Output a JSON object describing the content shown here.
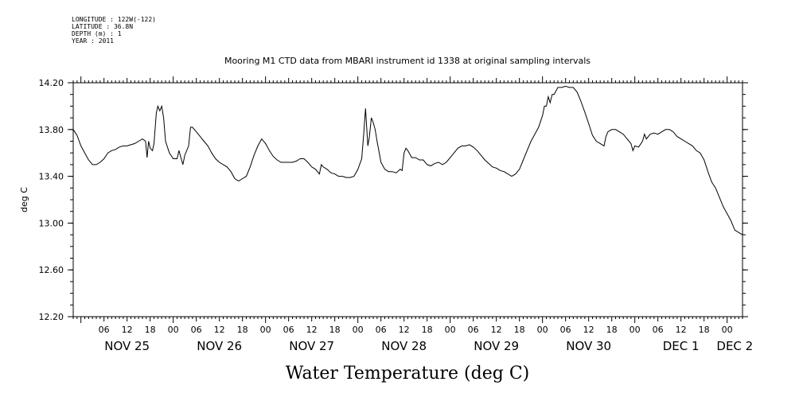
{
  "header": {
    "longitude": "LONGITUDE : 122W(-122)",
    "latitude": "LATITUDE : 36.8N",
    "depth": "DEPTH (m) : 1",
    "year": "YEAR : 2011"
  },
  "chart_data": {
    "type": "line",
    "title": "Mooring M1 CTD data from MBARI instrument id 1338 at original sampling intervals",
    "xlabel": "Water Temperature (deg C)",
    "ylabel": "deg C",
    "ylim": [
      12.2,
      14.2
    ],
    "xlim_hours": [
      0,
      174
    ],
    "x_unit": "hours since NOV 24 22:00",
    "y_ticks": [
      "14.20",
      "13.80",
      "13.40",
      "13.00",
      "12.60",
      "12.20"
    ],
    "x_hour_ticks": [
      "06",
      "12",
      "18",
      "00",
      "06",
      "12",
      "18",
      "00",
      "06",
      "12",
      "18",
      "00",
      "06",
      "12",
      "18",
      "00",
      "06",
      "12",
      "18",
      "00",
      "06",
      "12",
      "18",
      "00",
      "06",
      "12",
      "18",
      "00"
    ],
    "day_labels": [
      "NOV 25",
      "NOV 26",
      "NOV 27",
      "NOV 28",
      "NOV 29",
      "NOV 30",
      "DEC  1",
      "DEC  2"
    ],
    "series": [
      {
        "values": [
          [
            0,
            13.8
          ],
          [
            1,
            13.75
          ],
          [
            2,
            13.66
          ],
          [
            3,
            13.6
          ],
          [
            4,
            13.54
          ],
          [
            5,
            13.5
          ],
          [
            6,
            13.5
          ],
          [
            7,
            13.52
          ],
          [
            8,
            13.55
          ],
          [
            9,
            13.6
          ],
          [
            10,
            13.62
          ],
          [
            11,
            13.63
          ],
          [
            12,
            13.65
          ],
          [
            13,
            13.66
          ],
          [
            14,
            13.66
          ],
          [
            15,
            13.67
          ],
          [
            16,
            13.68
          ],
          [
            17,
            13.7
          ],
          [
            18,
            13.72
          ],
          [
            18.8,
            13.7
          ],
          [
            19.2,
            13.56
          ],
          [
            19.6,
            13.7
          ],
          [
            20,
            13.64
          ],
          [
            20.6,
            13.62
          ],
          [
            21,
            13.68
          ],
          [
            21.6,
            13.94
          ],
          [
            22,
            14.0
          ],
          [
            22.5,
            13.96
          ],
          [
            23,
            14.0
          ],
          [
            23.5,
            13.9
          ],
          [
            24,
            13.7
          ],
          [
            25,
            13.6
          ],
          [
            26,
            13.55
          ],
          [
            27,
            13.55
          ],
          [
            27.5,
            13.62
          ],
          [
            28,
            13.56
          ],
          [
            28.5,
            13.5
          ],
          [
            29,
            13.58
          ],
          [
            30,
            13.66
          ],
          [
            30.5,
            13.82
          ],
          [
            31,
            13.82
          ],
          [
            32,
            13.78
          ],
          [
            33,
            13.74
          ],
          [
            34,
            13.7
          ],
          [
            35,
            13.66
          ],
          [
            36,
            13.6
          ],
          [
            37,
            13.55
          ],
          [
            38,
            13.52
          ],
          [
            39,
            13.5
          ],
          [
            40,
            13.48
          ],
          [
            41,
            13.44
          ],
          [
            42,
            13.38
          ],
          [
            43,
            13.36
          ],
          [
            44,
            13.38
          ],
          [
            45,
            13.4
          ],
          [
            46,
            13.48
          ],
          [
            47,
            13.58
          ],
          [
            48,
            13.66
          ],
          [
            49,
            13.72
          ],
          [
            50,
            13.68
          ],
          [
            51,
            13.62
          ],
          [
            52,
            13.57
          ],
          [
            53,
            13.54
          ],
          [
            54,
            13.52
          ],
          [
            55,
            13.52
          ],
          [
            56,
            13.52
          ],
          [
            57,
            13.52
          ],
          [
            58,
            13.53
          ],
          [
            59,
            13.55
          ],
          [
            60,
            13.55
          ],
          [
            61,
            13.52
          ],
          [
            62,
            13.48
          ],
          [
            63,
            13.46
          ],
          [
            64,
            13.42
          ],
          [
            64.5,
            13.5
          ],
          [
            65,
            13.48
          ],
          [
            66,
            13.46
          ],
          [
            67,
            13.43
          ],
          [
            68,
            13.42
          ],
          [
            69,
            13.4
          ],
          [
            70,
            13.4
          ],
          [
            71,
            13.39
          ],
          [
            72,
            13.39
          ],
          [
            73,
            13.4
          ],
          [
            74,
            13.46
          ],
          [
            75,
            13.55
          ],
          [
            75.5,
            13.75
          ],
          [
            76,
            13.98
          ],
          [
            76.6,
            13.66
          ],
          [
            77,
            13.74
          ],
          [
            77.5,
            13.9
          ],
          [
            78,
            13.86
          ],
          [
            78.5,
            13.8
          ],
          [
            79,
            13.7
          ],
          [
            80,
            13.52
          ],
          [
            81,
            13.46
          ],
          [
            82,
            13.44
          ],
          [
            83,
            13.44
          ],
          [
            84,
            13.43
          ],
          [
            85,
            13.46
          ],
          [
            85.5,
            13.45
          ],
          [
            86,
            13.6
          ],
          [
            86.5,
            13.64
          ],
          [
            87,
            13.62
          ],
          [
            88,
            13.56
          ],
          [
            89,
            13.56
          ],
          [
            90,
            13.54
          ],
          [
            91,
            13.54
          ],
          [
            92,
            13.5
          ],
          [
            93,
            13.49
          ],
          [
            94,
            13.51
          ],
          [
            95,
            13.52
          ],
          [
            96,
            13.5
          ],
          [
            97,
            13.52
          ],
          [
            98,
            13.56
          ],
          [
            99,
            13.6
          ],
          [
            100,
            13.64
          ],
          [
            101,
            13.66
          ],
          [
            102,
            13.66
          ],
          [
            103,
            13.67
          ],
          [
            104,
            13.65
          ],
          [
            105,
            13.62
          ],
          [
            106,
            13.58
          ],
          [
            107,
            13.54
          ],
          [
            108,
            13.51
          ],
          [
            109,
            13.48
          ],
          [
            110,
            13.47
          ],
          [
            111,
            13.45
          ],
          [
            112,
            13.44
          ],
          [
            113,
            13.42
          ],
          [
            114,
            13.4
          ],
          [
            115,
            13.42
          ],
          [
            116,
            13.46
          ],
          [
            117,
            13.54
          ],
          [
            118,
            13.62
          ],
          [
            119,
            13.7
          ],
          [
            120,
            13.76
          ],
          [
            121,
            13.82
          ],
          [
            122,
            13.92
          ],
          [
            122.5,
            14.0
          ],
          [
            123,
            14.0
          ],
          [
            123.5,
            14.08
          ],
          [
            124,
            14.03
          ],
          [
            124.5,
            14.1
          ],
          [
            125,
            14.1
          ],
          [
            126,
            14.16
          ],
          [
            127,
            14.16
          ],
          [
            128,
            14.17
          ],
          [
            129,
            14.16
          ],
          [
            130,
            14.16
          ],
          [
            131,
            14.12
          ],
          [
            132,
            14.04
          ],
          [
            133,
            13.95
          ],
          [
            134,
            13.85
          ],
          [
            135,
            13.75
          ],
          [
            136,
            13.7
          ],
          [
            137,
            13.68
          ],
          [
            138,
            13.66
          ],
          [
            138.5,
            13.74
          ],
          [
            139,
            13.78
          ],
          [
            140,
            13.8
          ],
          [
            141,
            13.8
          ],
          [
            142,
            13.78
          ],
          [
            143,
            13.76
          ],
          [
            144,
            13.72
          ],
          [
            145,
            13.68
          ],
          [
            145.5,
            13.62
          ],
          [
            146,
            13.66
          ],
          [
            147,
            13.65
          ],
          [
            148,
            13.7
          ],
          [
            148.5,
            13.76
          ],
          [
            149,
            13.72
          ],
          [
            150,
            13.76
          ],
          [
            151,
            13.77
          ],
          [
            152,
            13.76
          ],
          [
            153,
            13.78
          ],
          [
            154,
            13.8
          ],
          [
            155,
            13.8
          ],
          [
            156,
            13.78
          ],
          [
            157,
            13.74
          ],
          [
            158,
            13.72
          ],
          [
            159,
            13.7
          ],
          [
            160,
            13.68
          ],
          [
            161,
            13.66
          ],
          [
            162,
            13.62
          ],
          [
            163,
            13.6
          ],
          [
            164,
            13.54
          ],
          [
            165,
            13.44
          ],
          [
            166,
            13.35
          ],
          [
            167,
            13.3
          ],
          [
            168,
            13.22
          ],
          [
            169,
            13.14
          ],
          [
            170,
            13.08
          ],
          [
            171,
            13.02
          ],
          [
            172,
            12.94
          ],
          [
            173,
            12.92
          ],
          [
            174,
            12.9
          ]
        ]
      }
    ]
  }
}
